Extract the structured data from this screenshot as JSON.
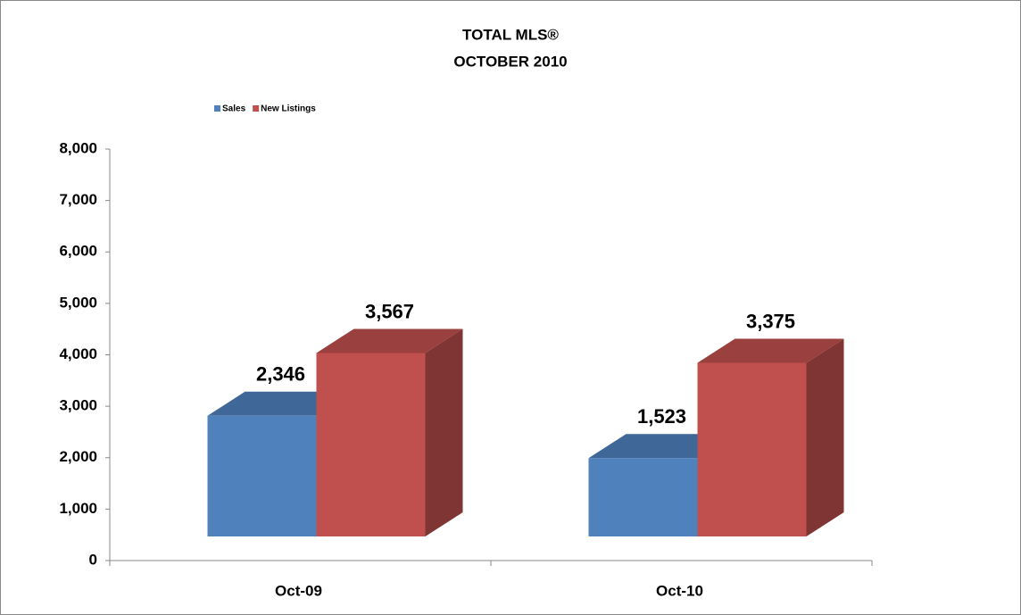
{
  "chart_data": {
    "type": "bar3d",
    "title": "TOTAL MLS®",
    "subtitle": "OCTOBER 2010",
    "categories": [
      "Oct-09",
      "Oct-10"
    ],
    "series": [
      {
        "name": "Sales",
        "color": "#4f81bd",
        "values": [
          2346,
          1523
        ],
        "value_labels": [
          "2,346",
          "1,523"
        ]
      },
      {
        "name": "New Listings",
        "color": "#c0504d",
        "values": [
          3567,
          3375
        ],
        "value_labels": [
          "3,567",
          "3,375"
        ]
      }
    ],
    "ylim": [
      0,
      8000
    ],
    "yticks": [
      0,
      {
        "value": 1000,
        "label": "1,000"
      },
      {
        "value": 2000,
        "label": "2,000"
      },
      {
        "value": 3000,
        "label": "3,000"
      },
      {
        "value": 4000,
        "label": "4,000"
      },
      {
        "value": 5000,
        "label": "5,000"
      },
      {
        "value": 6000,
        "label": "6,000"
      },
      {
        "value": 7000,
        "label": "7,000"
      },
      {
        "value": 8000,
        "label": "8,000"
      }
    ],
    "legend": "top-left"
  }
}
